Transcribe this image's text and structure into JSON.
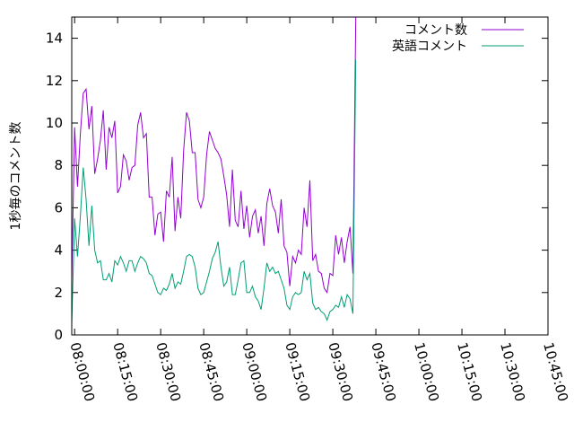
{
  "chart_data": {
    "type": "line",
    "ylabel": "1秒毎のコメント数",
    "xlabel": "",
    "title": "",
    "ylim": [
      0,
      15
    ],
    "xlim": [
      "07:59:00",
      "10:45:00"
    ],
    "y_ticks": [
      "0",
      "2",
      "4",
      "6",
      "8",
      "10",
      "12",
      "14"
    ],
    "x_ticks": [
      "08:00:00",
      "08:15:00",
      "08:30:00",
      "08:45:00",
      "09:00:00",
      "09:15:00",
      "09:30:00",
      "09:45:00",
      "10:00:00",
      "10:15:00",
      "10:30:00",
      "10:45:00"
    ],
    "legend_position": "top-right",
    "grid": false,
    "series": [
      {
        "name": "コメント数",
        "color": "#9400d3",
        "points": [
          [
            "07:59:00",
            2.6
          ],
          [
            "08:00:00",
            9.8
          ],
          [
            "08:01:00",
            7.0
          ],
          [
            "08:02:00",
            9.5
          ],
          [
            "08:03:00",
            11.4
          ],
          [
            "08:04:00",
            11.6
          ],
          [
            "08:05:00",
            9.7
          ],
          [
            "08:06:00",
            10.8
          ],
          [
            "08:07:00",
            7.6
          ],
          [
            "08:08:00",
            8.3
          ],
          [
            "08:09:00",
            9.2
          ],
          [
            "08:10:00",
            10.6
          ],
          [
            "08:11:00",
            7.8
          ],
          [
            "08:12:00",
            9.8
          ],
          [
            "08:13:00",
            9.3
          ],
          [
            "08:14:00",
            10.1
          ],
          [
            "08:15:00",
            6.7
          ],
          [
            "08:16:00",
            7.0
          ],
          [
            "08:17:00",
            8.5
          ],
          [
            "08:18:00",
            8.2
          ],
          [
            "08:19:00",
            7.3
          ],
          [
            "08:20:00",
            7.9
          ],
          [
            "08:21:00",
            8.0
          ],
          [
            "08:22:00",
            9.9
          ],
          [
            "08:23:00",
            10.5
          ],
          [
            "08:24:00",
            9.3
          ],
          [
            "08:25:00",
            9.5
          ],
          [
            "08:26:00",
            6.5
          ],
          [
            "08:27:00",
            6.5
          ],
          [
            "08:28:00",
            4.7
          ],
          [
            "08:29:00",
            5.7
          ],
          [
            "08:30:00",
            5.8
          ],
          [
            "08:31:00",
            4.4
          ],
          [
            "08:32:00",
            6.8
          ],
          [
            "08:33:00",
            6.5
          ],
          [
            "08:34:00",
            8.4
          ],
          [
            "08:35:00",
            4.9
          ],
          [
            "08:36:00",
            6.5
          ],
          [
            "08:37:00",
            5.5
          ],
          [
            "08:38:00",
            8.7
          ],
          [
            "08:39:00",
            10.5
          ],
          [
            "08:40:00",
            10.1
          ],
          [
            "08:41:00",
            8.6
          ],
          [
            "08:42:00",
            8.6
          ],
          [
            "08:43:00",
            6.4
          ],
          [
            "08:44:00",
            6.0
          ],
          [
            "08:45:00",
            6.5
          ],
          [
            "08:46:00",
            8.5
          ],
          [
            "08:47:00",
            9.6
          ],
          [
            "08:48:00",
            9.2
          ],
          [
            "08:49:00",
            8.8
          ],
          [
            "08:50:00",
            8.6
          ],
          [
            "08:51:00",
            8.3
          ],
          [
            "08:52:00",
            7.5
          ],
          [
            "08:53:00",
            6.6
          ],
          [
            "08:54:00",
            5.1
          ],
          [
            "08:55:00",
            7.8
          ],
          [
            "08:56:00",
            5.4
          ],
          [
            "08:57:00",
            5.1
          ],
          [
            "08:58:00",
            6.8
          ],
          [
            "08:59:00",
            5.0
          ],
          [
            "09:00:00",
            6.1
          ],
          [
            "09:01:00",
            4.6
          ],
          [
            "09:02:00",
            5.6
          ],
          [
            "09:03:00",
            5.9
          ],
          [
            "09:04:00",
            4.8
          ],
          [
            "09:05:00",
            5.6
          ],
          [
            "09:06:00",
            4.2
          ],
          [
            "09:07:00",
            6.2
          ],
          [
            "09:08:00",
            6.9
          ],
          [
            "09:09:00",
            6.1
          ],
          [
            "09:10:00",
            5.8
          ],
          [
            "09:11:00",
            4.8
          ],
          [
            "09:12:00",
            6.4
          ],
          [
            "09:13:00",
            4.2
          ],
          [
            "09:14:00",
            3.9
          ],
          [
            "09:15:00",
            2.3
          ],
          [
            "09:16:00",
            3.7
          ],
          [
            "09:17:00",
            3.4
          ],
          [
            "09:18:00",
            4.0
          ],
          [
            "09:19:00",
            3.8
          ],
          [
            "09:20:00",
            6.0
          ],
          [
            "09:21:00",
            5.1
          ],
          [
            "09:22:00",
            7.3
          ],
          [
            "09:23:00",
            3.5
          ],
          [
            "09:24:00",
            3.8
          ],
          [
            "09:25:00",
            3.0
          ],
          [
            "09:26:00",
            2.9
          ],
          [
            "09:27:00",
            2.2
          ],
          [
            "09:28:00",
            2.0
          ],
          [
            "09:29:00",
            2.9
          ],
          [
            "09:30:00",
            2.8
          ],
          [
            "09:31:00",
            4.7
          ],
          [
            "09:32:00",
            3.8
          ],
          [
            "09:33:00",
            4.6
          ],
          [
            "09:34:00",
            3.4
          ],
          [
            "09:35:00",
            4.4
          ],
          [
            "09:36:00",
            5.1
          ],
          [
            "09:37:00",
            2.9
          ],
          [
            "09:38:00",
            15.0
          ]
        ]
      },
      {
        "name": "英語コメント",
        "color": "#009e73",
        "points": [
          [
            "07:59:00",
            0.5
          ],
          [
            "08:00:00",
            5.5
          ],
          [
            "08:01:00",
            3.7
          ],
          [
            "08:02:00",
            5.6
          ],
          [
            "08:03:00",
            7.9
          ],
          [
            "08:04:00",
            6.4
          ],
          [
            "08:05:00",
            4.2
          ],
          [
            "08:06:00",
            6.1
          ],
          [
            "08:07:00",
            4.0
          ],
          [
            "08:08:00",
            3.4
          ],
          [
            "08:09:00",
            3.5
          ],
          [
            "08:10:00",
            2.6
          ],
          [
            "08:11:00",
            2.6
          ],
          [
            "08:12:00",
            2.9
          ],
          [
            "08:13:00",
            2.5
          ],
          [
            "08:14:00",
            3.5
          ],
          [
            "08:15:00",
            3.3
          ],
          [
            "08:16:00",
            3.7
          ],
          [
            "08:17:00",
            3.4
          ],
          [
            "08:18:00",
            3.0
          ],
          [
            "08:19:00",
            3.5
          ],
          [
            "08:20:00",
            3.5
          ],
          [
            "08:21:00",
            3.0
          ],
          [
            "08:22:00",
            3.4
          ],
          [
            "08:23:00",
            3.7
          ],
          [
            "08:24:00",
            3.6
          ],
          [
            "08:25:00",
            3.4
          ],
          [
            "08:26:00",
            2.9
          ],
          [
            "08:27:00",
            2.8
          ],
          [
            "08:28:00",
            2.4
          ],
          [
            "08:29:00",
            2.0
          ],
          [
            "08:30:00",
            1.9
          ],
          [
            "08:31:00",
            2.2
          ],
          [
            "08:32:00",
            2.1
          ],
          [
            "08:33:00",
            2.4
          ],
          [
            "08:34:00",
            2.9
          ],
          [
            "08:35:00",
            2.2
          ],
          [
            "08:36:00",
            2.5
          ],
          [
            "08:37:00",
            2.4
          ],
          [
            "08:38:00",
            3.0
          ],
          [
            "08:39:00",
            3.7
          ],
          [
            "08:40:00",
            3.8
          ],
          [
            "08:41:00",
            3.7
          ],
          [
            "08:42:00",
            3.2
          ],
          [
            "08:43:00",
            2.2
          ],
          [
            "08:44:00",
            1.9
          ],
          [
            "08:45:00",
            2.0
          ],
          [
            "08:46:00",
            2.5
          ],
          [
            "08:47:00",
            3.0
          ],
          [
            "08:48:00",
            3.6
          ],
          [
            "08:49:00",
            3.9
          ],
          [
            "08:50:00",
            4.4
          ],
          [
            "08:51:00",
            3.2
          ],
          [
            "08:52:00",
            2.3
          ],
          [
            "08:53:00",
            2.5
          ],
          [
            "08:54:00",
            3.2
          ],
          [
            "08:55:00",
            1.9
          ],
          [
            "08:56:00",
            1.9
          ],
          [
            "08:57:00",
            2.6
          ],
          [
            "08:58:00",
            3.4
          ],
          [
            "08:59:00",
            3.5
          ],
          [
            "09:00:00",
            2.0
          ],
          [
            "09:01:00",
            2.0
          ],
          [
            "09:02:00",
            2.3
          ],
          [
            "09:03:00",
            1.8
          ],
          [
            "09:04:00",
            1.6
          ],
          [
            "09:05:00",
            1.2
          ],
          [
            "09:06:00",
            2.2
          ],
          [
            "09:07:00",
            3.4
          ],
          [
            "09:08:00",
            3.0
          ],
          [
            "09:09:00",
            3.2
          ],
          [
            "09:10:00",
            2.9
          ],
          [
            "09:11:00",
            3.0
          ],
          [
            "09:12:00",
            2.6
          ],
          [
            "09:13:00",
            2.2
          ],
          [
            "09:14:00",
            1.4
          ],
          [
            "09:15:00",
            1.2
          ],
          [
            "09:16:00",
            1.8
          ],
          [
            "09:17:00",
            2.0
          ],
          [
            "09:18:00",
            1.9
          ],
          [
            "09:19:00",
            2.0
          ],
          [
            "09:20:00",
            3.0
          ],
          [
            "09:21:00",
            2.6
          ],
          [
            "09:22:00",
            2.9
          ],
          [
            "09:23:00",
            1.5
          ],
          [
            "09:24:00",
            1.2
          ],
          [
            "09:25:00",
            1.3
          ],
          [
            "09:26:00",
            1.1
          ],
          [
            "09:27:00",
            1.0
          ],
          [
            "09:28:00",
            0.7
          ],
          [
            "09:29:00",
            1.1
          ],
          [
            "09:30:00",
            1.2
          ],
          [
            "09:31:00",
            1.4
          ],
          [
            "09:32:00",
            1.3
          ],
          [
            "09:33:00",
            1.8
          ],
          [
            "09:34:00",
            1.3
          ],
          [
            "09:35:00",
            1.9
          ],
          [
            "09:36:00",
            1.7
          ],
          [
            "09:37:00",
            1.0
          ],
          [
            "09:38:00",
            13.0
          ]
        ]
      }
    ]
  }
}
